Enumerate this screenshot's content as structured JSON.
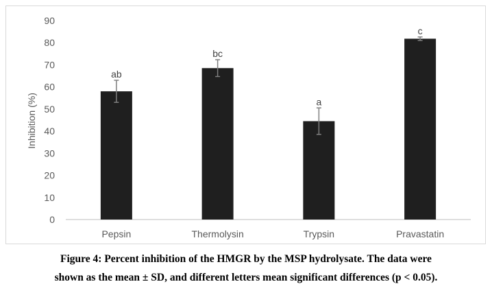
{
  "chart_data": {
    "type": "bar",
    "categories": [
      "Pepsin",
      "Thermolysin",
      "Trypsin",
      "Pravastatin"
    ],
    "series": [
      {
        "values": [
          58,
          68.5,
          44.5,
          81.8
        ],
        "error": [
          5,
          3.8,
          6,
          0.8
        ],
        "labels": [
          "ab",
          "bc",
          "a",
          "c"
        ]
      }
    ],
    "xlabel": "",
    "ylabel": "Inhibition (%)",
    "ylim": [
      0,
      90
    ],
    "yticks": [
      "0",
      "10",
      "20",
      "30",
      "40",
      "50",
      "60",
      "70",
      "80",
      "90"
    ],
    "grid": false,
    "bar_color": "#1f1f1f",
    "error_color": "#7f7f7f",
    "axis_color": "#bfbfbf",
    "text_color": "#595959"
  },
  "caption": {
    "line1": "Figure 4: Percent inhibition of the HMGR by the MSP hydrolysate. The data were",
    "line2": "shown as the mean ± SD, and different letters mean significant differences (p < 0.05)."
  }
}
